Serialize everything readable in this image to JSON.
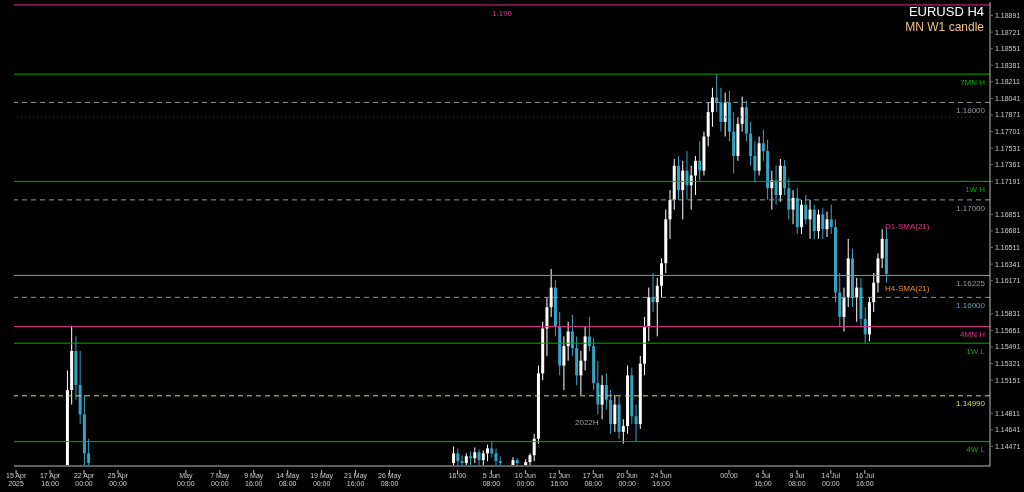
{
  "chart_data": {
    "type": "candlestick",
    "title": "EURUSD H4",
    "subtitle": "MN W1 candle",
    "categories": [
      "15 Apr 2025",
      null,
      null,
      null,
      null,
      null,
      null,
      null,
      "17 Apr 16:00",
      null,
      null,
      null,
      null,
      null,
      null,
      null,
      "22 Apr 00:00",
      null,
      null,
      null,
      null,
      null,
      null,
      null,
      "25 Apr 00:00",
      null,
      null,
      null,
      null,
      null,
      null,
      null,
      null,
      null,
      null,
      null,
      null,
      null,
      null,
      null,
      "May 00:00",
      null,
      null,
      null,
      null,
      null,
      null,
      null,
      "7 May 00:00",
      null,
      null,
      null,
      null,
      null,
      null,
      null,
      "9 May 16:00",
      null,
      null,
      null,
      null,
      null,
      null,
      null,
      "14 May 08:00",
      null,
      null,
      null,
      null,
      null,
      null,
      null,
      "19 May 00:00",
      null,
      null,
      null,
      null,
      null,
      null,
      null,
      "21 May 16:00",
      null,
      null,
      null,
      null,
      null,
      null,
      null,
      "26 May 08:00",
      null,
      null,
      null,
      null,
      null,
      null,
      null,
      null,
      null,
      null,
      null,
      null,
      null,
      null,
      null,
      "16:00",
      null,
      null,
      null,
      null,
      null,
      null,
      null,
      "5 Jun 08:00",
      null,
      null,
      null,
      null,
      null,
      null,
      null,
      "10 Jun 00:00",
      null,
      null,
      null,
      null,
      null,
      null,
      null,
      "12 Jun 16:00",
      null,
      null,
      null,
      null,
      null,
      null,
      null,
      "17 Jun 08:00",
      null,
      null,
      null,
      null,
      null,
      null,
      null,
      "20 Jun 00:00",
      null,
      null,
      null,
      null,
      null,
      null,
      null,
      "24 Jun 16:00",
      null,
      null,
      null,
      null,
      null,
      null,
      null,
      null,
      null,
      null,
      null,
      null,
      null,
      null,
      null,
      "00:00",
      null,
      null,
      null,
      null,
      null,
      null,
      null,
      "4 Jul 16:00",
      null,
      null,
      null,
      null,
      null,
      null,
      null,
      "9 Jul 08:00",
      null,
      null,
      null,
      null,
      null,
      null,
      null,
      "14 Jul 00:00",
      null,
      null,
      null,
      null,
      null,
      null,
      null,
      "16 Jul 16:00",
      null,
      null,
      null,
      null,
      null,
      null,
      null,
      null,
      null,
      null,
      null,
      null,
      null,
      null,
      null,
      null,
      null,
      null,
      null,
      null,
      null,
      null,
      null,
      null,
      null,
      null,
      null,
      null,
      null
    ],
    "ohlc": [
      null,
      null,
      null,
      null,
      null,
      null,
      null,
      null,
      null,
      null,
      null,
      null,
      [
        1.1428,
        1.1525,
        1.1428,
        1.1505
      ],
      [
        1.1505,
        1.1571,
        1.149,
        1.1545
      ],
      [
        1.1545,
        1.156,
        1.1495,
        1.151
      ],
      [
        1.151,
        1.1545,
        1.147,
        1.148
      ],
      [
        1.148,
        1.15,
        1.1428,
        1.144
      ],
      [
        1.144,
        1.1455,
        1.1428,
        1.143
      ],
      null,
      null,
      null,
      null,
      null,
      null,
      null,
      null,
      null,
      null,
      null,
      null,
      null,
      null,
      null,
      null,
      null,
      null,
      null,
      null,
      null,
      null,
      null,
      null,
      null,
      null,
      null,
      null,
      null,
      null,
      null,
      null,
      null,
      null,
      null,
      null,
      null,
      null,
      null,
      null,
      null,
      null,
      null,
      null,
      null,
      null,
      null,
      null,
      null,
      null,
      null,
      null,
      null,
      null,
      null,
      null,
      null,
      null,
      null,
      null,
      null,
      null,
      null,
      null,
      null,
      null,
      null,
      null,
      null,
      null,
      null,
      null,
      null,
      null,
      null,
      null,
      null,
      null,
      null,
      null,
      null,
      null,
      null,
      null,
      null,
      [
        1.143,
        1.1447,
        1.1428,
        1.144
      ],
      [
        1.144,
        1.1445,
        1.1428,
        1.1432
      ],
      [
        1.1432,
        1.1438,
        1.1428,
        1.143
      ],
      [
        1.143,
        1.144,
        1.1428,
        1.1437
      ],
      [
        1.1437,
        1.1442,
        1.1428,
        1.1435
      ],
      [
        1.1435,
        1.1446,
        1.143,
        1.1441
      ],
      [
        1.1441,
        1.1444,
        1.1428,
        1.1433
      ],
      [
        1.1433,
        1.1443,
        1.1428,
        1.144
      ],
      [
        1.144,
        1.1449,
        1.1432,
        1.1445
      ],
      [
        1.1445,
        1.1452,
        1.1436,
        1.144
      ],
      [
        1.144,
        1.1445,
        1.1428,
        1.1432
      ],
      [
        1.1432,
        1.1437,
        1.1428,
        1.143
      ],
      null,
      null,
      [
        1.1428,
        1.1436,
        1.1428,
        1.1433
      ],
      [
        1.1433,
        1.1435,
        1.1428,
        1.143
      ],
      null,
      [
        1.1428,
        1.1434,
        1.1428,
        1.1431
      ],
      [
        1.1431,
        1.144,
        1.1428,
        1.1438
      ],
      [
        1.1438,
        1.146,
        1.1432,
        1.1455
      ],
      [
        1.1455,
        1.153,
        1.145,
        1.1522
      ],
      [
        1.1522,
        1.1575,
        1.1515,
        1.1568
      ],
      [
        1.1568,
        1.16,
        1.154,
        1.159
      ],
      [
        1.159,
        1.1629,
        1.158,
        1.161
      ],
      [
        1.161,
        1.1618,
        1.156,
        1.157
      ],
      [
        1.157,
        1.1585,
        1.152,
        1.153
      ],
      [
        1.153,
        1.156,
        1.1505,
        1.155
      ],
      [
        1.155,
        1.1575,
        1.1535,
        1.1565
      ],
      [
        1.1565,
        1.1582,
        1.154,
        1.1548
      ],
      [
        1.1548,
        1.156,
        1.151,
        1.152
      ],
      [
        1.152,
        1.1545,
        1.15,
        1.1535
      ],
      [
        1.1535,
        1.157,
        1.1525,
        1.156
      ],
      [
        1.156,
        1.158,
        1.1545,
        1.155
      ],
      [
        1.155,
        1.1558,
        1.1505,
        1.1512
      ],
      [
        1.1512,
        1.1535,
        1.148,
        1.149
      ],
      [
        1.149,
        1.152,
        1.1475,
        1.151
      ],
      [
        1.151,
        1.1522,
        1.1485,
        1.1495
      ],
      [
        1.1495,
        1.1505,
        1.146,
        1.147
      ],
      [
        1.147,
        1.15,
        1.1462,
        1.149
      ],
      [
        1.149,
        1.1498,
        1.1455,
        1.1462
      ],
      [
        1.1462,
        1.1475,
        1.145,
        1.1468
      ],
      [
        1.1468,
        1.153,
        1.146,
        1.152
      ],
      [
        1.152,
        1.1528,
        1.147,
        1.1478
      ],
      [
        1.1478,
        1.149,
        1.1452,
        1.147
      ],
      [
        1.147,
        1.154,
        1.1465,
        1.1532
      ],
      [
        1.1532,
        1.158,
        1.152,
        1.157
      ],
      [
        1.157,
        1.161,
        1.1555,
        1.16
      ],
      [
        1.16,
        1.1625,
        1.1585,
        1.1595
      ],
      [
        1.1595,
        1.162,
        1.156,
        1.1612
      ],
      [
        1.1612,
        1.164,
        1.16,
        1.1635
      ],
      [
        1.1635,
        1.169,
        1.1625,
        1.168
      ],
      [
        1.168,
        1.171,
        1.166,
        1.17
      ],
      [
        1.17,
        1.1742,
        1.169,
        1.1735
      ],
      [
        1.1735,
        1.1745,
        1.17,
        1.171
      ],
      [
        1.171,
        1.174,
        1.168,
        1.173
      ],
      [
        1.173,
        1.175,
        1.17,
        1.1715
      ],
      [
        1.1715,
        1.1735,
        1.169,
        1.1725
      ],
      [
        1.1725,
        1.1745,
        1.1705,
        1.174
      ],
      [
        1.174,
        1.176,
        1.172,
        1.173
      ],
      [
        1.173,
        1.177,
        1.1725,
        1.1765
      ],
      [
        1.1765,
        1.18,
        1.1755,
        1.179
      ],
      [
        1.179,
        1.1815,
        1.1775,
        1.1805
      ],
      [
        1.1805,
        1.1829,
        1.179,
        1.18
      ],
      [
        1.18,
        1.1815,
        1.177,
        1.178
      ],
      [
        1.178,
        1.181,
        1.1765,
        1.18
      ],
      [
        1.18,
        1.1812,
        1.176,
        1.177
      ],
      [
        1.177,
        1.179,
        1.1727,
        1.1745
      ],
      [
        1.1745,
        1.1785,
        1.174,
        1.1778
      ],
      [
        1.1778,
        1.1806,
        1.177,
        1.1795
      ],
      [
        1.1795,
        1.1802,
        1.176,
        1.1768
      ],
      [
        1.1768,
        1.178,
        1.1735,
        1.1745
      ],
      [
        1.1745,
        1.176,
        1.1718,
        1.173
      ],
      [
        1.173,
        1.1765,
        1.1725,
        1.1758
      ],
      [
        1.1758,
        1.1772,
        1.174,
        1.175
      ],
      [
        1.175,
        1.1762,
        1.17,
        1.1712
      ],
      [
        1.1712,
        1.173,
        1.169,
        1.172
      ],
      [
        1.172,
        1.1735,
        1.1695,
        1.1705
      ],
      [
        1.1705,
        1.1742,
        1.1698,
        1.1735
      ],
      [
        1.1735,
        1.1741,
        1.1705,
        1.1712
      ],
      [
        1.1712,
        1.1722,
        1.168,
        1.169
      ],
      [
        1.169,
        1.171,
        1.1675,
        1.1702
      ],
      [
        1.1702,
        1.1712,
        1.1665,
        1.1672
      ],
      [
        1.1672,
        1.17,
        1.1665,
        1.1695
      ],
      [
        1.1695,
        1.1705,
        1.1675,
        1.168
      ],
      [
        1.168,
        1.17,
        1.166,
        1.169
      ],
      [
        1.169,
        1.1695,
        1.166,
        1.1668
      ],
      [
        1.1668,
        1.169,
        1.166,
        1.1685
      ],
      [
        1.1685,
        1.1692,
        1.166,
        1.167
      ],
      [
        1.167,
        1.1688,
        1.1662,
        1.168
      ],
      [
        1.168,
        1.1695,
        1.1665,
        1.1672
      ],
      [
        1.1672,
        1.168,
        1.1595,
        1.1605
      ],
      [
        1.1605,
        1.1625,
        1.157,
        1.158
      ],
      [
        1.158,
        1.161,
        1.1565,
        1.16
      ],
      [
        1.16,
        1.166,
        1.159,
        1.164
      ],
      [
        1.164,
        1.165,
        1.159,
        1.16
      ],
      [
        1.16,
        1.162,
        1.1575,
        1.161
      ],
      [
        1.161,
        1.162,
        1.157,
        1.1578
      ],
      [
        1.1578,
        1.159,
        1.1553,
        1.1562
      ],
      [
        1.1562,
        1.16,
        1.1555,
        1.1595
      ],
      [
        1.1595,
        1.1625,
        1.1585,
        1.1615
      ],
      [
        1.1615,
        1.1645,
        1.1605,
        1.164
      ],
      [
        1.164,
        1.167,
        1.163,
        1.166
      ],
      [
        1.166,
        1.1672,
        1.1615,
        1.1624
      ],
      null,
      null,
      null,
      null,
      null,
      null,
      null,
      null,
      null,
      null,
      null,
      null,
      null,
      null,
      null,
      null,
      null,
      null,
      null,
      null,
      null,
      null,
      null,
      null
    ],
    "colors": [
      null,
      null,
      null,
      null,
      null,
      null,
      null,
      null,
      null,
      null,
      null,
      null,
      "#ffffff",
      "#ffffff",
      "#2fa4c4",
      "#2fa4c4",
      "#2fa4c4",
      "#2fa4c4",
      null,
      null,
      null,
      null,
      null,
      null,
      null,
      null,
      null,
      null,
      null,
      null,
      null,
      null,
      null,
      null,
      null,
      null,
      null,
      null,
      null,
      null,
      null,
      null,
      null,
      null,
      null,
      null,
      null,
      null,
      null,
      null,
      null,
      null,
      null,
      null,
      null,
      null,
      null,
      null,
      null,
      null,
      null,
      null,
      null,
      null,
      null,
      null,
      null,
      null,
      null,
      null,
      null,
      null,
      null,
      null,
      null,
      null,
      null,
      null,
      null,
      null,
      null,
      null,
      null,
      null,
      null,
      null,
      null,
      null,
      null,
      null,
      null,
      null,
      null,
      null,
      null,
      null,
      null,
      null,
      null,
      null,
      null,
      null,
      null,
      "#ffffff",
      "#2fa4c4",
      "#2fa4c4",
      "#ffffff",
      "#2fa4c4",
      "#ffffff",
      "#2fa4c4",
      "#ffffff",
      "#ffffff",
      "#2fa4c4",
      "#2fa4c4",
      "#2fa4c4",
      null,
      null,
      "#ffffff",
      "#2fa4c4",
      null,
      "#ffffff",
      "#ffffff",
      "#ffffff",
      "#ffffff",
      "#ffffff",
      "#ffffff",
      "#ffffff",
      "#2fa4c4",
      "#2fa4c4",
      "#ffffff",
      "#ffffff",
      "#2fa4c4",
      "#2fa4c4",
      "#ffffff",
      "#ffffff",
      "#2fa4c4",
      "#2fa4c4",
      "#2fa4c4",
      "#ffffff",
      "#2fa4c4",
      "#2fa4c4",
      "#ffffff",
      "#2fa4c4",
      "#ffffff",
      "#ffffff",
      "#2fa4c4",
      "#2fa4c4",
      "#ffffff",
      "#ffffff",
      "#ffffff",
      "#2fa4c4",
      "#ffffff",
      "#ffffff",
      "#ffffff",
      "#ffffff",
      "#ffffff",
      "#2fa4c4",
      "#ffffff",
      "#2fa4c4",
      "#ffffff",
      "#ffffff",
      "#2fa4c4",
      "#ffffff",
      "#ffffff",
      "#ffffff",
      "#2fa4c4",
      "#2fa4c4",
      "#ffffff",
      "#2fa4c4",
      "#2fa4c4",
      "#ffffff",
      "#ffffff",
      "#2fa4c4",
      "#2fa4c4",
      "#2fa4c4",
      "#ffffff",
      "#2fa4c4",
      "#2fa4c4",
      "#ffffff",
      "#2fa4c4",
      "#ffffff",
      "#2fa4c4",
      "#2fa4c4",
      "#ffffff",
      "#2fa4c4",
      "#ffffff",
      "#2fa4c4",
      "#ffffff",
      "#2fa4c4",
      "#ffffff",
      "#2fa4c4",
      "#ffffff",
      "#2fa4c4",
      "#2fa4c4",
      "#2fa4c4",
      "#ffffff",
      "#ffffff",
      "#2fa4c4",
      "#ffffff",
      "#2fa4c4",
      "#2fa4c4",
      "#ffffff",
      "#ffffff",
      "#ffffff",
      "#ffffff",
      "#2fa4c4",
      null,
      null,
      null,
      null,
      null,
      null,
      null,
      null,
      null,
      null,
      null,
      null,
      null,
      null,
      null,
      null,
      null,
      null,
      null,
      null,
      null,
      null,
      null,
      null
    ],
    "ylim": [
      1.1427,
      1.1903
    ],
    "yticks": [
      1.14471,
      1.14641,
      1.14811,
      1.15151,
      1.15321,
      1.15491,
      1.15661,
      1.15831,
      1.16171,
      1.16341,
      1.16511,
      1.16681,
      1.16851,
      1.17191,
      1.17361,
      1.17531,
      1.17701,
      1.17871,
      1.18041,
      1.18211,
      1.18381,
      1.18551,
      1.18721,
      1.18891
    ],
    "ref_lines": [
      {
        "axis": "y",
        "value": 1.19,
        "label": "1.190",
        "color": "#e0308a",
        "line_style": "solid"
      },
      {
        "axis": "y",
        "value": 1.1829,
        "label": "7MN H",
        "color": "#00b000",
        "line_style": "solid"
      },
      {
        "axis": "y",
        "value": 1.18,
        "label": "1.18000",
        "color": "#8a9aa0",
        "line_style": "dashed"
      },
      {
        "axis": "y",
        "value": 1.1785,
        "color": "#b01010",
        "line_style": "dotted"
      },
      {
        "axis": "y",
        "value": 1.1719,
        "label": "1W H",
        "color": "#00b000",
        "line_style": "solid"
      },
      {
        "axis": "y",
        "value": 1.17,
        "label": "1.17000",
        "color": "#8a9aa0",
        "line_style": "dashed"
      },
      {
        "axis": "y",
        "value": 1.16225,
        "label": "1.16225",
        "color": "#8a9aa0",
        "line_style": "solid"
      },
      {
        "axis": "y",
        "value": 1.16,
        "label": "1.16000",
        "color": "#5fa0b0",
        "line_style": "dashed"
      },
      {
        "axis": "y",
        "value": 1.157,
        "label": "4MN H",
        "color": "#e0308a",
        "line_style": "solid"
      },
      {
        "axis": "y",
        "value": 1.1553,
        "label": "1W L",
        "color": "#00b000",
        "line_style": "solid"
      },
      {
        "axis": "y",
        "value": 1.1499,
        "label": "1.14990",
        "color": "#d8d860",
        "line_style": "dashed"
      },
      {
        "axis": "y",
        "value": 1.1452,
        "label": "4W L",
        "color": "#00b000",
        "line_style": "solid"
      }
    ],
    "annotations": [
      "2022H",
      "D1-SMA(21)",
      "H4-SMA(21)"
    ],
    "grid": false,
    "legend": false
  }
}
